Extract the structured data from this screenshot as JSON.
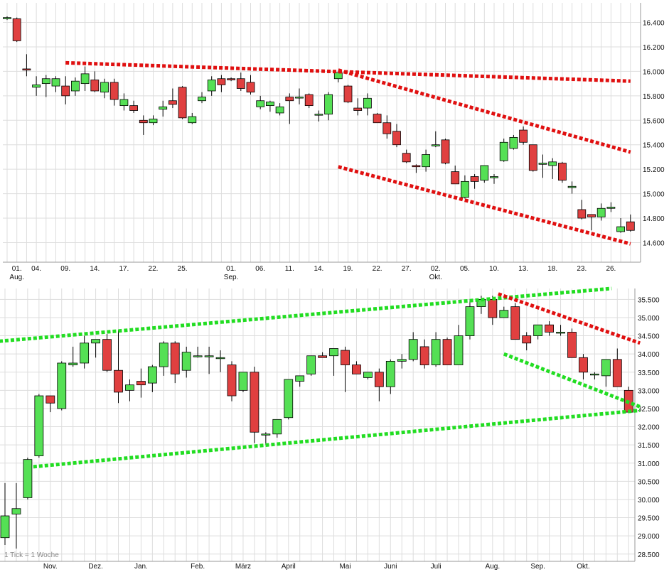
{
  "colors": {
    "up": "#55e055",
    "down": "#e04040",
    "trend_red": "#e01010",
    "trend_green": "#22dd22",
    "grid": "#dddddd"
  },
  "footer_label": "1 Tick = 1 Woche",
  "chart_data": [
    {
      "type": "candlestick",
      "interval": "daily",
      "ylim": [
        14440,
        16560
      ],
      "yticks": [
        14600,
        14800,
        15000,
        15200,
        15400,
        15600,
        15800,
        16000,
        16200,
        16400
      ],
      "ytick_labels": [
        "14.600",
        "14.800",
        "15.000",
        "15.200",
        "15.400",
        "15.600",
        "15.800",
        "16.000",
        "16.200",
        "16.400"
      ],
      "xtick_labels": [
        {
          "i": 1,
          "label": "01."
        },
        {
          "i": 3,
          "label": "04."
        },
        {
          "i": 6,
          "label": "09."
        },
        {
          "i": 9,
          "label": "14."
        },
        {
          "i": 12,
          "label": "17."
        },
        {
          "i": 15,
          "label": "22."
        },
        {
          "i": 18,
          "label": "25."
        },
        {
          "i": 23,
          "label": "01."
        },
        {
          "i": 26,
          "label": "06."
        },
        {
          "i": 29,
          "label": "11."
        },
        {
          "i": 32,
          "label": "14."
        },
        {
          "i": 35,
          "label": "19."
        },
        {
          "i": 38,
          "label": "22."
        },
        {
          "i": 41,
          "label": "27."
        },
        {
          "i": 44,
          "label": "02."
        },
        {
          "i": 47,
          "label": "05."
        },
        {
          "i": 50,
          "label": "10."
        },
        {
          "i": 53,
          "label": "13."
        },
        {
          "i": 56,
          "label": "18."
        },
        {
          "i": 59,
          "label": "23."
        },
        {
          "i": 62,
          "label": "26."
        }
      ],
      "month_labels": [
        {
          "i": 1,
          "label": "Aug."
        },
        {
          "i": 23,
          "label": "Sep."
        },
        {
          "i": 44,
          "label": "Okt."
        }
      ],
      "candles": [
        [
          16430,
          16450,
          16420,
          16440
        ],
        [
          16430,
          16440,
          16240,
          16250
        ],
        [
          16020,
          16140,
          15960,
          16010
        ],
        [
          15870,
          15960,
          15800,
          15890
        ],
        [
          15900,
          15970,
          15790,
          15940
        ],
        [
          15880,
          15960,
          15830,
          15940
        ],
        [
          15880,
          15960,
          15730,
          15800
        ],
        [
          15840,
          15950,
          15800,
          15920
        ],
        [
          15900,
          16040,
          15840,
          15980
        ],
        [
          15930,
          16000,
          15830,
          15840
        ],
        [
          15830,
          15940,
          15780,
          15910
        ],
        [
          15910,
          15940,
          15720,
          15770
        ],
        [
          15720,
          15820,
          15680,
          15770
        ],
        [
          15720,
          15760,
          15660,
          15680
        ],
        [
          15600,
          15640,
          15480,
          15580
        ],
        [
          15580,
          15640,
          15560,
          15610
        ],
        [
          15690,
          15760,
          15630,
          15710
        ],
        [
          15760,
          15860,
          15700,
          15730
        ],
        [
          15870,
          15880,
          15610,
          15620
        ],
        [
          15580,
          15660,
          15570,
          15630
        ],
        [
          15760,
          15830,
          15740,
          15790
        ],
        [
          15840,
          15960,
          15800,
          15930
        ],
        [
          15940,
          15970,
          15830,
          15890
        ],
        [
          15940,
          15950,
          15920,
          15930
        ],
        [
          15940,
          15990,
          15840,
          15860
        ],
        [
          15910,
          15970,
          15810,
          15830
        ],
        [
          15710,
          15800,
          15690,
          15760
        ],
        [
          15720,
          15760,
          15670,
          15750
        ],
        [
          15660,
          15740,
          15640,
          15710
        ],
        [
          15790,
          15820,
          15570,
          15760
        ],
        [
          15790,
          15860,
          15730,
          15790
        ],
        [
          15810,
          15820,
          15700,
          15720
        ],
        [
          15650,
          15680,
          15590,
          15650
        ],
        [
          15650,
          15830,
          15600,
          15810
        ],
        [
          15940,
          15990,
          15910,
          15990
        ],
        [
          15880,
          15890,
          15740,
          15750
        ],
        [
          15700,
          15780,
          15640,
          15680
        ],
        [
          15700,
          15820,
          15640,
          15780
        ],
        [
          15650,
          15660,
          15580,
          15580
        ],
        [
          15580,
          15640,
          15450,
          15490
        ],
        [
          15510,
          15570,
          15380,
          15400
        ],
        [
          15330,
          15360,
          15250,
          15260
        ],
        [
          15230,
          15240,
          15170,
          15220
        ],
        [
          15220,
          15360,
          15180,
          15320
        ],
        [
          15390,
          15510,
          15380,
          15400
        ],
        [
          15440,
          15450,
          15240,
          15250
        ],
        [
          15180,
          15230,
          15080,
          15080
        ],
        [
          14970,
          15150,
          14960,
          15100
        ],
        [
          15140,
          15160,
          15040,
          15100
        ],
        [
          15110,
          15230,
          15090,
          15230
        ],
        [
          15130,
          15160,
          15080,
          15140
        ],
        [
          15270,
          15450,
          15260,
          15420
        ],
        [
          15370,
          15480,
          15360,
          15460
        ],
        [
          15520,
          15550,
          15400,
          15420
        ],
        [
          15400,
          15400,
          15180,
          15190
        ],
        [
          15240,
          15320,
          15130,
          15250
        ],
        [
          15230,
          15290,
          15120,
          15260
        ],
        [
          15250,
          15260,
          15090,
          15110
        ],
        [
          15050,
          15100,
          15000,
          15060
        ],
        [
          14870,
          14950,
          14790,
          14800
        ],
        [
          14830,
          14830,
          14700,
          14810
        ],
        [
          14810,
          14920,
          14780,
          14880
        ],
        [
          14880,
          14930,
          14850,
          14890
        ],
        [
          14690,
          14800,
          14680,
          14730
        ],
        [
          14770,
          14830,
          14690,
          14700
        ]
      ],
      "trendlines": [
        {
          "color": "red",
          "from": [
            6,
            16070
          ],
          "to": [
            64,
            15920
          ]
        },
        {
          "color": "red",
          "from": [
            34,
            16010
          ],
          "to": [
            64,
            15340
          ]
        },
        {
          "color": "red",
          "from": [
            34,
            15220
          ],
          "to": [
            64,
            14590
          ]
        }
      ]
    },
    {
      "type": "candlestick",
      "interval": "weekly",
      "ylim": [
        28300,
        35800
      ],
      "yticks": [
        28500,
        29000,
        29500,
        30000,
        30500,
        31000,
        31500,
        32000,
        32500,
        33000,
        33500,
        34000,
        34500,
        35000,
        35500
      ],
      "ytick_labels": [
        "28.500",
        "29.000",
        "29.500",
        "30.000",
        "30.500",
        "31.000",
        "31.500",
        "32.000",
        "32.500",
        "33.000",
        "33.500",
        "34.000",
        "34.500",
        "35.000",
        "35.500"
      ],
      "xtick_labels": [
        {
          "i": 4,
          "label": "Nov."
        },
        {
          "i": 8,
          "label": "Dez."
        },
        {
          "i": 12,
          "label": "Jan."
        },
        {
          "i": 17,
          "label": "Feb."
        },
        {
          "i": 21,
          "label": "März"
        },
        {
          "i": 25,
          "label": "April"
        },
        {
          "i": 30,
          "label": "Mai"
        },
        {
          "i": 34,
          "label": "Juni"
        },
        {
          "i": 38,
          "label": "Juli"
        },
        {
          "i": 43,
          "label": "Aug."
        },
        {
          "i": 47,
          "label": "Sep."
        },
        {
          "i": 51,
          "label": "Okt."
        }
      ],
      "candles": [
        [
          28950,
          30450,
          28750,
          29550
        ],
        [
          29600,
          30450,
          28650,
          29750
        ],
        [
          30050,
          31150,
          30000,
          31100
        ],
        [
          31200,
          32900,
          31150,
          32850
        ],
        [
          32850,
          32850,
          32400,
          32650
        ],
        [
          32500,
          33800,
          32450,
          33750
        ],
        [
          33700,
          34200,
          33650,
          33750
        ],
        [
          33750,
          34500,
          33600,
          34300
        ],
        [
          34300,
          34400,
          33900,
          34400
        ],
        [
          34400,
          34550,
          33500,
          33550
        ],
        [
          33550,
          34650,
          32650,
          32950
        ],
        [
          33000,
          33300,
          32700,
          33150
        ],
        [
          33250,
          33600,
          32800,
          33150
        ],
        [
          33200,
          33700,
          32950,
          33650
        ],
        [
          33650,
          34350,
          33400,
          34300
        ],
        [
          34300,
          34350,
          33200,
          33450
        ],
        [
          33550,
          34200,
          33350,
          34050
        ],
        [
          33950,
          34200,
          33900,
          33950
        ],
        [
          33950,
          34200,
          33450,
          33950
        ],
        [
          33900,
          34100,
          33500,
          33900
        ],
        [
          33700,
          33800,
          32700,
          32850
        ],
        [
          33000,
          33500,
          32950,
          33500
        ],
        [
          33500,
          33650,
          31550,
          31850
        ],
        [
          31800,
          31850,
          31500,
          31800
        ],
        [
          31800,
          32200,
          31700,
          32200
        ],
        [
          32250,
          33300,
          32200,
          33300
        ],
        [
          33250,
          33400,
          33100,
          33400
        ],
        [
          33450,
          33950,
          33400,
          33950
        ],
        [
          33950,
          34050,
          33900,
          33900
        ],
        [
          33950,
          34150,
          33400,
          34150
        ],
        [
          34100,
          34200,
          32950,
          33700
        ],
        [
          33700,
          33800,
          33450,
          33450
        ],
        [
          33350,
          33500,
          33300,
          33500
        ],
        [
          33500,
          33600,
          32700,
          33100
        ],
        [
          33100,
          33850,
          32900,
          33800
        ],
        [
          33800,
          34000,
          33600,
          33850
        ],
        [
          33850,
          34600,
          33800,
          34400
        ],
        [
          34200,
          34400,
          33600,
          33700
        ],
        [
          33700,
          34600,
          33650,
          34400
        ],
        [
          34400,
          34450,
          33700,
          33700
        ],
        [
          33700,
          34800,
          33700,
          34500
        ],
        [
          34500,
          35500,
          34400,
          35300
        ],
        [
          35300,
          35600,
          35100,
          35500
        ],
        [
          35500,
          35600,
          34800,
          35000
        ],
        [
          35000,
          35300,
          35000,
          35200
        ],
        [
          35300,
          35400,
          34400,
          34400
        ],
        [
          34500,
          34600,
          34100,
          34300
        ],
        [
          34500,
          34800,
          34400,
          34800
        ],
        [
          34800,
          34900,
          34500,
          34600
        ],
        [
          34600,
          34800,
          34500,
          34600
        ],
        [
          34600,
          34700,
          33900,
          33900
        ],
        [
          33900,
          34000,
          33300,
          33500
        ],
        [
          33450,
          33500,
          33300,
          33450
        ],
        [
          33400,
          33850,
          33100,
          33850
        ],
        [
          33850,
          34150,
          33150,
          33100
        ],
        [
          33000,
          33100,
          32400,
          32400
        ]
      ],
      "trendlines": [
        {
          "color": "green",
          "from": [
            -0.5,
            34350
          ],
          "to": [
            53.5,
            35800
          ]
        },
        {
          "color": "green",
          "from": [
            2.5,
            30900
          ],
          "to": [
            56,
            32450
          ]
        },
        {
          "color": "green",
          "from": [
            44,
            34000
          ],
          "to": [
            56,
            32550
          ]
        },
        {
          "color": "red",
          "from": [
            43.5,
            35650
          ],
          "to": [
            56,
            34300
          ]
        }
      ]
    }
  ]
}
